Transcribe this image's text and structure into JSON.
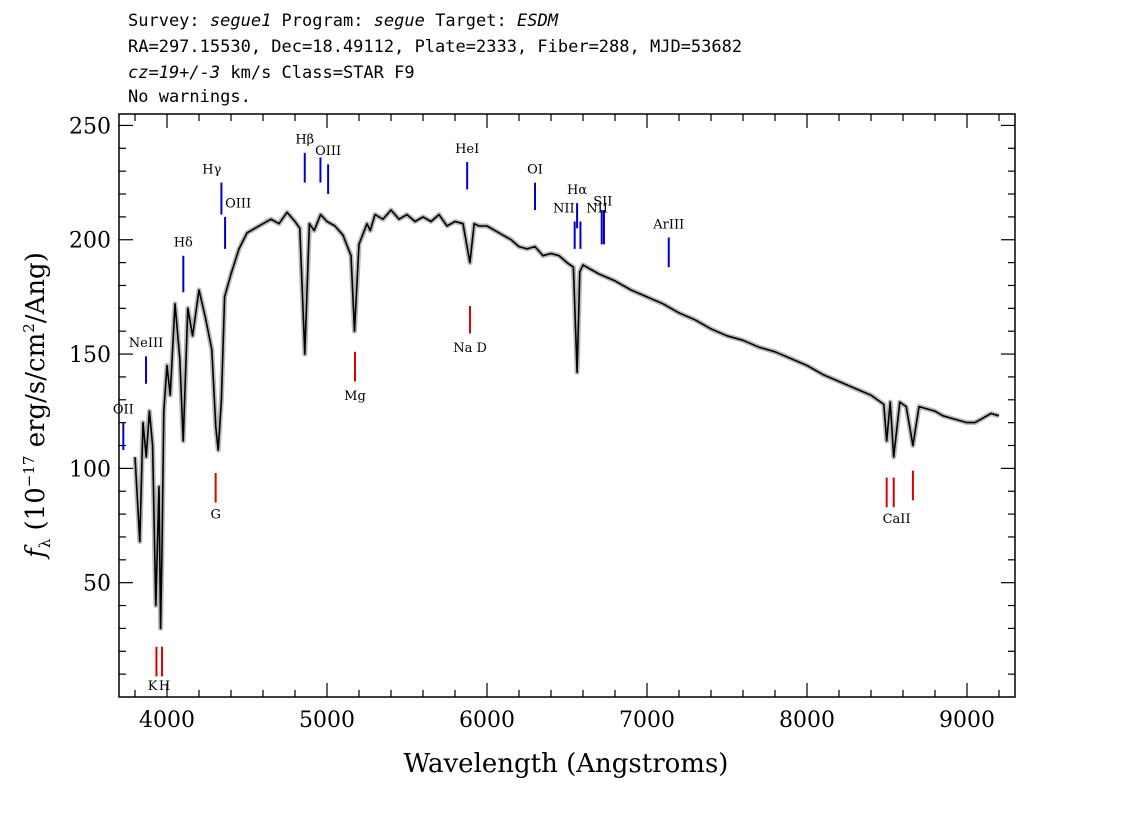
{
  "header": {
    "line1": {
      "survey_label": "Survey: ",
      "survey": "segue1",
      "program_label": " Program: ",
      "program": "segue",
      "target_label": " Target: ",
      "target": "ESDM"
    },
    "line2": "RA=297.15530, Dec=18.49112, Plate=2333, Fiber=288, MJD=53682",
    "line3": {
      "cz": "cz=19+/-3",
      "rest": " km/s Class=STAR F9"
    },
    "line4": "No warnings."
  },
  "colors": {
    "emission": "#0000cc",
    "absorption": "#dd0000",
    "spectrum": "#000000",
    "error_band": "#b8b8b8"
  },
  "chart_data": {
    "type": "line",
    "xlabel": "Wavelength (Angstroms)",
    "ylabel": "f_λ (10^-17 erg/s/cm^2/Ang)",
    "xlim": [
      3700,
      9300
    ],
    "ylim": [
      0,
      255
    ],
    "x_ticks": [
      4000,
      5000,
      6000,
      7000,
      8000,
      9000
    ],
    "y_ticks": [
      50,
      100,
      150,
      200,
      250
    ],
    "x_tick_labels": [
      "4000",
      "5000",
      "6000",
      "7000",
      "8000",
      "9000"
    ],
    "y_tick_labels": [
      "50",
      "100",
      "150",
      "200",
      "250"
    ],
    "series": [
      {
        "x": [
          3800,
          3830,
          3850,
          3870,
          3890,
          3910,
          3930,
          3950,
          3960,
          3968,
          3980,
          4000,
          4020,
          4050,
          4080,
          4101,
          4130,
          4160,
          4200,
          4240,
          4280,
          4305,
          4320,
          4340,
          4360,
          4400,
          4450,
          4500,
          4550,
          4600,
          4650,
          4700,
          4750,
          4800,
          4830,
          4861,
          4890,
          4920,
          4960,
          5000,
          5050,
          5100,
          5150,
          5172,
          5200,
          5250,
          5270,
          5300,
          5350,
          5400,
          5450,
          5500,
          5550,
          5600,
          5650,
          5700,
          5750,
          5800,
          5850,
          5893,
          5920,
          5950,
          6000,
          6050,
          6100,
          6150,
          6200,
          6250,
          6300,
          6350,
          6400,
          6450,
          6500,
          6540,
          6563,
          6580,
          6600,
          6650,
          6700,
          6800,
          6900,
          7000,
          7100,
          7200,
          7300,
          7400,
          7500,
          7600,
          7700,
          7800,
          7900,
          8000,
          8100,
          8200,
          8300,
          8400,
          8480,
          8498,
          8520,
          8542,
          8580,
          8620,
          8662,
          8700,
          8750,
          8800,
          8850,
          8900,
          8950,
          9000,
          9050,
          9100,
          9150,
          9200
        ],
        "values": [
          105,
          68,
          120,
          105,
          125,
          110,
          40,
          92,
          30,
          62,
          125,
          145,
          132,
          172,
          148,
          112,
          170,
          158,
          178,
          166,
          152,
          118,
          108,
          130,
          175,
          185,
          196,
          203,
          205,
          207,
          209,
          207,
          212,
          208,
          205,
          150,
          207,
          204,
          211,
          208,
          206,
          202,
          193,
          160,
          198,
          207,
          204,
          211,
          209,
          213,
          209,
          211,
          208,
          210,
          208,
          211,
          206,
          208,
          207,
          190,
          207,
          206,
          206,
          204,
          202,
          200,
          197,
          196,
          197,
          193,
          194,
          193,
          190,
          188,
          142,
          186,
          189,
          187,
          185,
          182,
          178,
          175,
          172,
          168,
          165,
          161,
          158,
          156,
          153,
          151,
          148,
          145,
          141,
          138,
          135,
          132,
          128,
          112,
          129,
          105,
          129,
          127,
          110,
          127,
          126,
          125,
          123,
          122,
          121,
          120,
          120,
          122,
          124,
          123
        ]
      }
    ],
    "emission_lines": [
      {
        "label": "OII",
        "wave": 3727,
        "y_bottom": 108,
        "y_top": 120
      },
      {
        "label": "NeIII",
        "wave": 3869,
        "y_bottom": 137,
        "y_top": 149
      },
      {
        "label": "Hδ",
        "wave": 4102,
        "y_bottom": 177,
        "y_top": 193
      },
      {
        "label": "Hγ",
        "wave": 4340,
        "y_bottom": 211,
        "y_top": 225
      },
      {
        "label": "OIII",
        "wave": 4363,
        "y_bottom": 196,
        "y_top": 210
      },
      {
        "label": "Hβ",
        "wave": 4861,
        "y_bottom": 225,
        "y_top": 238
      },
      {
        "label": "OIII",
        "wave": 4959,
        "y_bottom": 225,
        "y_top": 236
      },
      {
        "label": "OIII",
        "wave": 5007,
        "y_bottom": 220,
        "y_top": 233
      },
      {
        "label": "HeI",
        "wave": 5876,
        "y_bottom": 222,
        "y_top": 234
      },
      {
        "label": "OI",
        "wave": 6300,
        "y_bottom": 213,
        "y_top": 225
      },
      {
        "label": "NII",
        "wave": 6548,
        "y_bottom": 196,
        "y_top": 208
      },
      {
        "label": "Hα",
        "wave": 6563,
        "y_bottom": 205,
        "y_top": 216
      },
      {
        "label": "NII",
        "wave": 6584,
        "y_bottom": 196,
        "y_top": 208
      },
      {
        "label": "SII",
        "wave": 6717,
        "y_bottom": 198,
        "y_top": 213
      },
      {
        "label": "SII",
        "wave": 6731,
        "y_bottom": 198,
        "y_top": 213
      },
      {
        "label": "ArIII",
        "wave": 7136,
        "y_bottom": 188,
        "y_top": 201
      }
    ],
    "absorption_lines": [
      {
        "label": "K",
        "wave": 3934,
        "y_bottom": 9,
        "y_top": 22
      },
      {
        "label": "H",
        "wave": 3969,
        "y_bottom": 9,
        "y_top": 22
      },
      {
        "label": "G",
        "wave": 4304,
        "y_bottom": 85,
        "y_top": 98
      },
      {
        "label": "Mg",
        "wave": 5175,
        "y_bottom": 138,
        "y_top": 151
      },
      {
        "label": "Na D",
        "wave": 5894,
        "y_bottom": 159,
        "y_top": 171
      },
      {
        "label": "CaII",
        "wave": 8498,
        "y_bottom": 83,
        "y_top": 96
      },
      {
        "label": "CaII",
        "wave": 8542,
        "y_bottom": 83,
        "y_top": 96
      },
      {
        "label": "CaII",
        "wave": 8662,
        "y_bottom": 86,
        "y_top": 99
      }
    ],
    "line_labels": [
      {
        "text": "OII",
        "wave": 3727,
        "y": 124,
        "kind": "emission",
        "anchor": "middle"
      },
      {
        "text": "NeIII",
        "wave": 3869,
        "y": 153,
        "kind": "emission",
        "anchor": "middle"
      },
      {
        "text": "Hδ",
        "wave": 4102,
        "y": 197,
        "kind": "emission",
        "anchor": "middle"
      },
      {
        "text": "Hγ",
        "wave": 4340,
        "y": 229,
        "kind": "emission",
        "anchor": "end"
      },
      {
        "text": "OIII",
        "wave": 4363,
        "y": 214,
        "kind": "emission",
        "anchor": "start"
      },
      {
        "text": "Hβ",
        "wave": 4861,
        "y": 242,
        "kind": "emission",
        "anchor": "middle"
      },
      {
        "text": "OIII",
        "wave": 5007,
        "y": 237,
        "kind": "emission",
        "anchor": "middle"
      },
      {
        "text": "HeI",
        "wave": 5876,
        "y": 238,
        "kind": "emission",
        "anchor": "middle"
      },
      {
        "text": "OI",
        "wave": 6300,
        "y": 229,
        "kind": "emission",
        "anchor": "middle"
      },
      {
        "text": "NII",
        "wave": 6548,
        "y": 212,
        "kind": "emission",
        "anchor": "end"
      },
      {
        "text": "Hα",
        "wave": 6563,
        "y": 220,
        "kind": "emission",
        "anchor": "middle"
      },
      {
        "text": "NII",
        "wave": 6620,
        "y": 212,
        "kind": "emission",
        "anchor": "start"
      },
      {
        "text": "SII",
        "wave": 6724,
        "y": 215,
        "kind": "emission",
        "anchor": "middle"
      },
      {
        "text": "ArIII",
        "wave": 7136,
        "y": 205,
        "kind": "emission",
        "anchor": "middle"
      },
      {
        "text": "K",
        "wave": 3910,
        "y": 3,
        "kind": "absorption",
        "anchor": "middle"
      },
      {
        "text": "H",
        "wave": 3985,
        "y": 3,
        "kind": "absorption",
        "anchor": "middle"
      },
      {
        "text": "G",
        "wave": 4304,
        "y": 78,
        "kind": "absorption",
        "anchor": "middle"
      },
      {
        "text": "Mg",
        "wave": 5175,
        "y": 130,
        "kind": "absorption",
        "anchor": "middle"
      },
      {
        "text": "Na D",
        "wave": 5894,
        "y": 151,
        "kind": "absorption",
        "anchor": "middle"
      },
      {
        "text": "CaII",
        "wave": 8560,
        "y": 76,
        "kind": "absorption",
        "anchor": "middle"
      }
    ]
  }
}
